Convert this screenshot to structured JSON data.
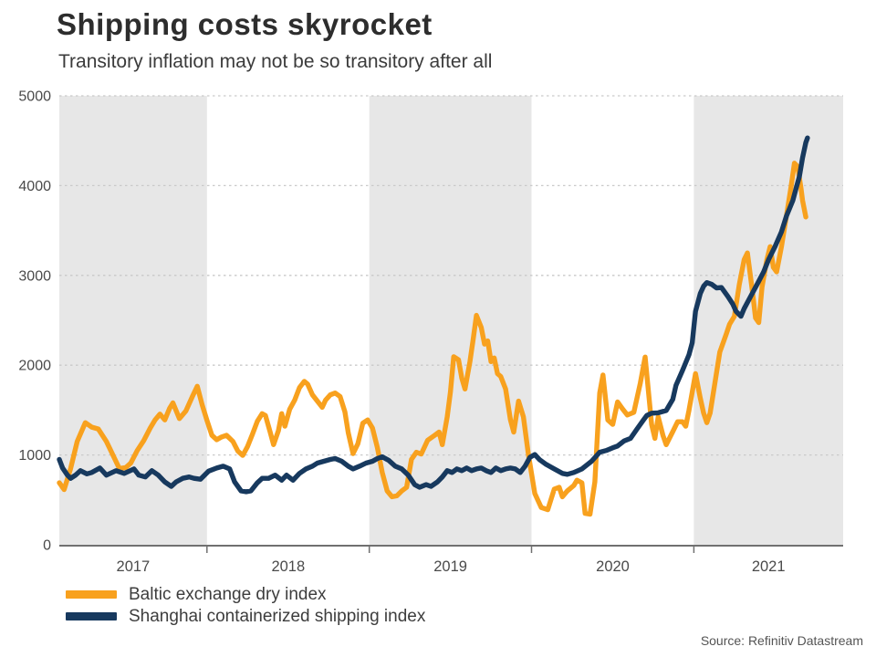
{
  "chart_data": {
    "type": "line",
    "title": "Shipping costs skyrocket",
    "subtitle": "Transitory inflation may not be so transitory after all",
    "source": "Source: Refinitiv Datastream",
    "x_range": [
      2017.09,
      2021.92
    ],
    "ylim": [
      0,
      5000
    ],
    "y_ticks": [
      0,
      1000,
      2000,
      3000,
      4000,
      5000
    ],
    "x_ticks": [
      2018,
      2019,
      2020,
      2021
    ],
    "grid": "dotted-horizontal",
    "legend_position": "bottom-left",
    "colors": {
      "band_shade": "#E7E7E7",
      "gridline": "#C9C9C9",
      "axis": "#707070",
      "tick_text": "#4A4A4A"
    },
    "x_bands": [
      {
        "label": "2017",
        "from": 2017.09,
        "to": 2018.0,
        "shaded": true
      },
      {
        "label": "2018",
        "from": 2018.0,
        "to": 2019.0,
        "shaded": false
      },
      {
        "label": "2019",
        "from": 2019.0,
        "to": 2020.0,
        "shaded": true
      },
      {
        "label": "2020",
        "from": 2020.0,
        "to": 2021.0,
        "shaded": false
      },
      {
        "label": "2021",
        "from": 2021.0,
        "to": 2021.92,
        "shaded": true
      }
    ],
    "series": [
      {
        "name": "Baltic exchange dry index",
        "color": "#F8A11E",
        "points": [
          [
            2017.09,
            690
          ],
          [
            2017.12,
            615
          ],
          [
            2017.16,
            850
          ],
          [
            2017.2,
            1150
          ],
          [
            2017.25,
            1360
          ],
          [
            2017.29,
            1310
          ],
          [
            2017.33,
            1290
          ],
          [
            2017.38,
            1150
          ],
          [
            2017.42,
            1000
          ],
          [
            2017.46,
            850
          ],
          [
            2017.5,
            860
          ],
          [
            2017.53,
            910
          ],
          [
            2017.57,
            1050
          ],
          [
            2017.61,
            1160
          ],
          [
            2017.65,
            1300
          ],
          [
            2017.68,
            1390
          ],
          [
            2017.71,
            1455
          ],
          [
            2017.74,
            1390
          ],
          [
            2017.77,
            1520
          ],
          [
            2017.79,
            1580
          ],
          [
            2017.83,
            1405
          ],
          [
            2017.87,
            1490
          ],
          [
            2017.91,
            1650
          ],
          [
            2017.94,
            1765
          ],
          [
            2017.97,
            1560
          ],
          [
            2018.0,
            1385
          ],
          [
            2018.03,
            1220
          ],
          [
            2018.06,
            1170
          ],
          [
            2018.09,
            1200
          ],
          [
            2018.12,
            1220
          ],
          [
            2018.16,
            1150
          ],
          [
            2018.19,
            1045
          ],
          [
            2018.22,
            995
          ],
          [
            2018.25,
            1095
          ],
          [
            2018.28,
            1230
          ],
          [
            2018.31,
            1375
          ],
          [
            2018.34,
            1460
          ],
          [
            2018.36,
            1440
          ],
          [
            2018.39,
            1250
          ],
          [
            2018.41,
            1115
          ],
          [
            2018.44,
            1270
          ],
          [
            2018.46,
            1460
          ],
          [
            2018.48,
            1320
          ],
          [
            2018.51,
            1510
          ],
          [
            2018.54,
            1610
          ],
          [
            2018.57,
            1750
          ],
          [
            2018.6,
            1820
          ],
          [
            2018.62,
            1790
          ],
          [
            2018.65,
            1670
          ],
          [
            2018.68,
            1600
          ],
          [
            2018.71,
            1530
          ],
          [
            2018.73,
            1610
          ],
          [
            2018.76,
            1670
          ],
          [
            2018.79,
            1690
          ],
          [
            2018.82,
            1650
          ],
          [
            2018.85,
            1480
          ],
          [
            2018.87,
            1250
          ],
          [
            2018.9,
            1015
          ],
          [
            2018.93,
            1125
          ],
          [
            2018.96,
            1355
          ],
          [
            2018.99,
            1390
          ],
          [
            2019.02,
            1300
          ],
          [
            2019.05,
            1080
          ],
          [
            2019.08,
            805
          ],
          [
            2019.11,
            600
          ],
          [
            2019.14,
            535
          ],
          [
            2019.17,
            545
          ],
          [
            2019.2,
            600
          ],
          [
            2019.23,
            640
          ],
          [
            2019.26,
            950
          ],
          [
            2019.29,
            1030
          ],
          [
            2019.32,
            1010
          ],
          [
            2019.36,
            1165
          ],
          [
            2019.4,
            1215
          ],
          [
            2019.43,
            1255
          ],
          [
            2019.45,
            1115
          ],
          [
            2019.48,
            1425
          ],
          [
            2019.5,
            1700
          ],
          [
            2019.52,
            2095
          ],
          [
            2019.55,
            2060
          ],
          [
            2019.57,
            1855
          ],
          [
            2019.59,
            1735
          ],
          [
            2019.62,
            2040
          ],
          [
            2019.64,
            2285
          ],
          [
            2019.66,
            2555
          ],
          [
            2019.69,
            2420
          ],
          [
            2019.71,
            2235
          ],
          [
            2019.73,
            2270
          ],
          [
            2019.75,
            2040
          ],
          [
            2019.77,
            2080
          ],
          [
            2019.79,
            1905
          ],
          [
            2019.81,
            1875
          ],
          [
            2019.84,
            1735
          ],
          [
            2019.87,
            1390
          ],
          [
            2019.89,
            1255
          ],
          [
            2019.92,
            1600
          ],
          [
            2019.95,
            1425
          ],
          [
            2019.98,
            1010
          ],
          [
            2020.02,
            570
          ],
          [
            2020.06,
            415
          ],
          [
            2020.1,
            390
          ],
          [
            2020.14,
            620
          ],
          [
            2020.17,
            640
          ],
          [
            2020.19,
            535
          ],
          [
            2020.22,
            600
          ],
          [
            2020.26,
            660
          ],
          [
            2020.28,
            720
          ],
          [
            2020.31,
            690
          ],
          [
            2020.33,
            350
          ],
          [
            2020.36,
            340
          ],
          [
            2020.39,
            700
          ],
          [
            2020.42,
            1690
          ],
          [
            2020.44,
            1890
          ],
          [
            2020.47,
            1390
          ],
          [
            2020.5,
            1340
          ],
          [
            2020.53,
            1590
          ],
          [
            2020.56,
            1515
          ],
          [
            2020.59,
            1445
          ],
          [
            2020.63,
            1475
          ],
          [
            2020.67,
            1800
          ],
          [
            2020.7,
            2090
          ],
          [
            2020.74,
            1340
          ],
          [
            2020.76,
            1185
          ],
          [
            2020.78,
            1425
          ],
          [
            2020.81,
            1215
          ],
          [
            2020.83,
            1115
          ],
          [
            2020.87,
            1260
          ],
          [
            2020.9,
            1370
          ],
          [
            2020.93,
            1370
          ],
          [
            2020.95,
            1320
          ],
          [
            2020.97,
            1495
          ],
          [
            2020.99,
            1700
          ],
          [
            2021.01,
            1905
          ],
          [
            2021.04,
            1630
          ],
          [
            2021.06,
            1465
          ],
          [
            2021.08,
            1360
          ],
          [
            2021.1,
            1465
          ],
          [
            2021.13,
            1805
          ],
          [
            2021.16,
            2145
          ],
          [
            2021.2,
            2350
          ],
          [
            2021.22,
            2455
          ],
          [
            2021.25,
            2545
          ],
          [
            2021.28,
            2900
          ],
          [
            2021.31,
            3175
          ],
          [
            2021.33,
            3250
          ],
          [
            2021.36,
            2835
          ],
          [
            2021.38,
            2525
          ],
          [
            2021.4,
            2475
          ],
          [
            2021.42,
            2870
          ],
          [
            2021.45,
            3175
          ],
          [
            2021.47,
            3320
          ],
          [
            2021.49,
            3090
          ],
          [
            2021.51,
            3040
          ],
          [
            2021.54,
            3320
          ],
          [
            2021.57,
            3660
          ],
          [
            2021.6,
            4000
          ],
          [
            2021.62,
            4250
          ],
          [
            2021.64,
            4210
          ],
          [
            2021.66,
            3970
          ],
          [
            2021.67,
            3835
          ],
          [
            2021.69,
            3650
          ]
        ]
      },
      {
        "name": "Shanghai containerized shipping index",
        "color": "#17395E",
        "points": [
          [
            2017.09,
            950
          ],
          [
            2017.11,
            855
          ],
          [
            2017.14,
            775
          ],
          [
            2017.16,
            740
          ],
          [
            2017.19,
            775
          ],
          [
            2017.22,
            825
          ],
          [
            2017.26,
            790
          ],
          [
            2017.29,
            805
          ],
          [
            2017.34,
            855
          ],
          [
            2017.38,
            775
          ],
          [
            2017.44,
            825
          ],
          [
            2017.49,
            795
          ],
          [
            2017.55,
            845
          ],
          [
            2017.58,
            775
          ],
          [
            2017.62,
            755
          ],
          [
            2017.66,
            825
          ],
          [
            2017.7,
            775
          ],
          [
            2017.74,
            700
          ],
          [
            2017.78,
            650
          ],
          [
            2017.81,
            700
          ],
          [
            2017.85,
            740
          ],
          [
            2017.89,
            755
          ],
          [
            2017.92,
            740
          ],
          [
            2017.96,
            730
          ],
          [
            2018.01,
            820
          ],
          [
            2018.06,
            855
          ],
          [
            2018.1,
            875
          ],
          [
            2018.14,
            845
          ],
          [
            2018.17,
            700
          ],
          [
            2018.21,
            600
          ],
          [
            2018.24,
            590
          ],
          [
            2018.27,
            600
          ],
          [
            2018.31,
            690
          ],
          [
            2018.34,
            740
          ],
          [
            2018.38,
            740
          ],
          [
            2018.42,
            775
          ],
          [
            2018.46,
            720
          ],
          [
            2018.49,
            775
          ],
          [
            2018.53,
            720
          ],
          [
            2018.57,
            795
          ],
          [
            2018.61,
            845
          ],
          [
            2018.65,
            875
          ],
          [
            2018.68,
            910
          ],
          [
            2018.72,
            930
          ],
          [
            2018.76,
            950
          ],
          [
            2018.79,
            960
          ],
          [
            2018.83,
            930
          ],
          [
            2018.87,
            875
          ],
          [
            2018.9,
            845
          ],
          [
            2018.94,
            875
          ],
          [
            2018.98,
            910
          ],
          [
            2019.02,
            930
          ],
          [
            2019.05,
            960
          ],
          [
            2019.08,
            980
          ],
          [
            2019.12,
            940
          ],
          [
            2019.16,
            875
          ],
          [
            2019.2,
            845
          ],
          [
            2019.24,
            775
          ],
          [
            2019.28,
            670
          ],
          [
            2019.31,
            640
          ],
          [
            2019.35,
            670
          ],
          [
            2019.38,
            650
          ],
          [
            2019.42,
            700
          ],
          [
            2019.45,
            755
          ],
          [
            2019.48,
            825
          ],
          [
            2019.51,
            805
          ],
          [
            2019.54,
            845
          ],
          [
            2019.57,
            825
          ],
          [
            2019.6,
            855
          ],
          [
            2019.63,
            825
          ],
          [
            2019.66,
            845
          ],
          [
            2019.69,
            855
          ],
          [
            2019.72,
            825
          ],
          [
            2019.75,
            805
          ],
          [
            2019.78,
            855
          ],
          [
            2019.81,
            825
          ],
          [
            2019.84,
            845
          ],
          [
            2019.87,
            855
          ],
          [
            2019.9,
            845
          ],
          [
            2019.93,
            805
          ],
          [
            2019.96,
            875
          ],
          [
            2019.99,
            975
          ],
          [
            2020.02,
            1005
          ],
          [
            2020.05,
            947
          ],
          [
            2020.09,
            895
          ],
          [
            2020.14,
            845
          ],
          [
            2020.19,
            795
          ],
          [
            2020.22,
            785
          ],
          [
            2020.26,
            805
          ],
          [
            2020.31,
            845
          ],
          [
            2020.37,
            930
          ],
          [
            2020.42,
            1030
          ],
          [
            2020.46,
            1050
          ],
          [
            2020.5,
            1080
          ],
          [
            2020.53,
            1100
          ],
          [
            2020.57,
            1155
          ],
          [
            2020.61,
            1185
          ],
          [
            2020.65,
            1290
          ],
          [
            2020.69,
            1390
          ],
          [
            2020.71,
            1440
          ],
          [
            2020.74,
            1465
          ],
          [
            2020.78,
            1470
          ],
          [
            2020.83,
            1495
          ],
          [
            2020.87,
            1620
          ],
          [
            2020.89,
            1775
          ],
          [
            2020.93,
            1940
          ],
          [
            2020.97,
            2115
          ],
          [
            2020.99,
            2250
          ],
          [
            2021.01,
            2600
          ],
          [
            2021.04,
            2800
          ],
          [
            2021.06,
            2880
          ],
          [
            2021.08,
            2920
          ],
          [
            2021.11,
            2900
          ],
          [
            2021.14,
            2860
          ],
          [
            2021.17,
            2865
          ],
          [
            2021.21,
            2765
          ],
          [
            2021.24,
            2680
          ],
          [
            2021.26,
            2600
          ],
          [
            2021.29,
            2545
          ],
          [
            2021.31,
            2630
          ],
          [
            2021.35,
            2765
          ],
          [
            2021.39,
            2900
          ],
          [
            2021.43,
            3040
          ],
          [
            2021.46,
            3175
          ],
          [
            2021.5,
            3320
          ],
          [
            2021.54,
            3485
          ],
          [
            2021.57,
            3660
          ],
          [
            2021.61,
            3835
          ],
          [
            2021.63,
            3970
          ],
          [
            2021.65,
            4100
          ],
          [
            2021.67,
            4310
          ],
          [
            2021.69,
            4480
          ],
          [
            2021.7,
            4530
          ]
        ]
      }
    ]
  }
}
